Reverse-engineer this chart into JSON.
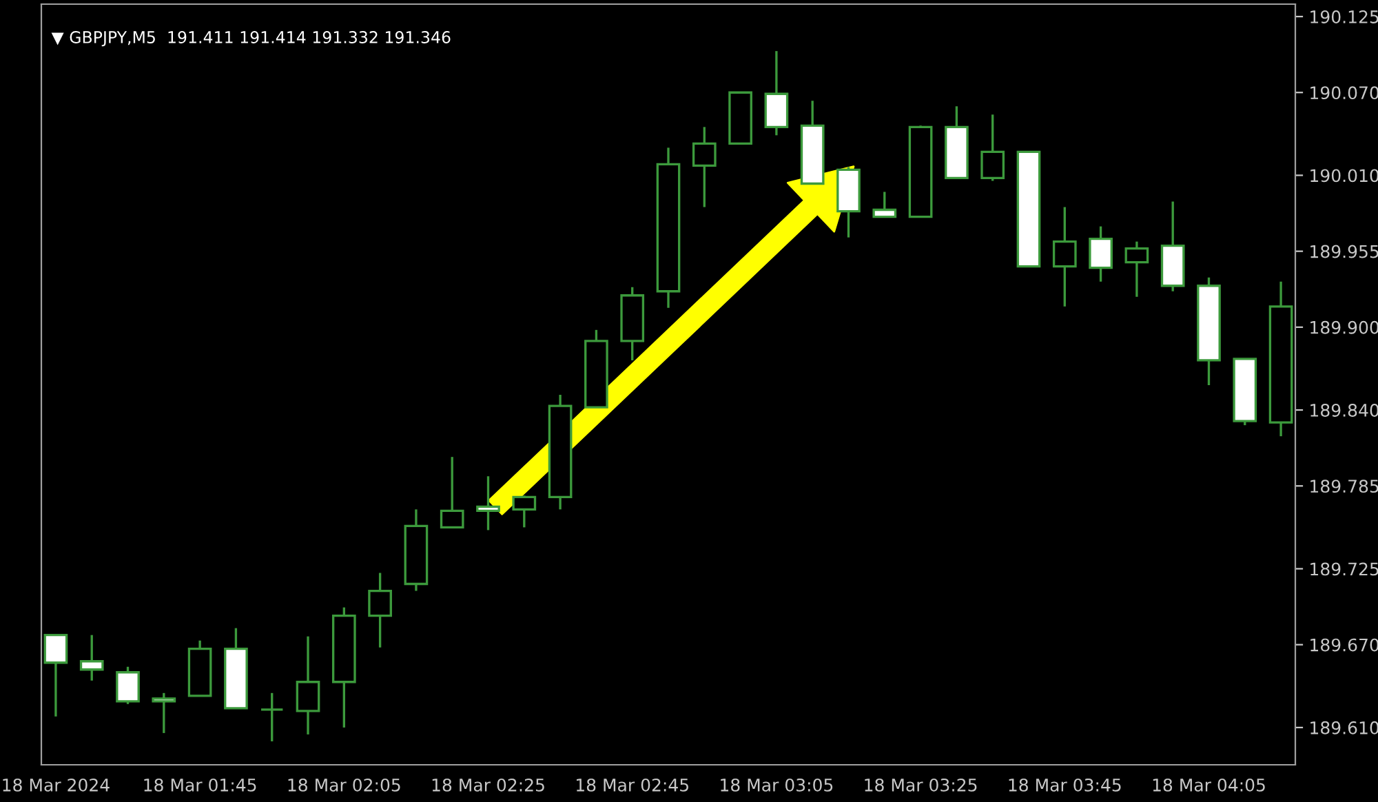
{
  "chart_data": {
    "type": "candlestick",
    "title": "▼ GBPJPY,M5  191.411 191.414 191.332 191.346",
    "categories": [
      "18 Mar 2024",
      null,
      null,
      null,
      "18 Mar 01:45",
      null,
      null,
      null,
      "18 Mar 02:05",
      null,
      null,
      null,
      "18 Mar 02:25",
      null,
      null,
      null,
      "18 Mar 02:45",
      null,
      null,
      null,
      "18 Mar 03:05",
      null,
      null,
      null,
      "18 Mar 03:25",
      null,
      null,
      null,
      "18 Mar 03:45",
      null,
      null,
      null,
      "18 Mar 04:05",
      null,
      null
    ],
    "color": "#3c9a3c",
    "colors": [
      "#ffffff",
      "#ffffff",
      "#ffffff",
      "#ffffff",
      "#000000",
      "#ffffff",
      "#3c9a3c",
      "#000000",
      "#000000",
      "#000000",
      "#000000",
      "#000000",
      "#ffffff",
      "#000000",
      "#000000",
      "#000000",
      "#000000",
      "#000000",
      "#000000",
      "#000000",
      "#ffffff",
      "#ffffff",
      "#ffffff",
      "#ffffff",
      "#000000",
      "#ffffff",
      "#000000",
      "#ffffff",
      "#000000",
      "#ffffff",
      "#000000",
      "#ffffff",
      "#ffffff",
      "#ffffff",
      "#000000"
    ],
    "ohlc": [
      [
        189.677,
        189.677,
        189.618,
        189.657
      ],
      [
        189.658,
        189.677,
        189.644,
        189.652
      ],
      [
        189.65,
        189.654,
        189.627,
        189.629
      ],
      [
        189.631,
        189.635,
        189.606,
        189.629
      ],
      [
        189.633,
        189.673,
        189.633,
        189.667
      ],
      [
        189.667,
        189.682,
        189.624,
        189.624
      ],
      [
        189.623,
        189.635,
        189.6,
        189.623
      ],
      [
        189.622,
        189.676,
        189.605,
        189.643
      ],
      [
        189.643,
        189.697,
        189.61,
        189.691
      ],
      [
        189.691,
        189.722,
        189.668,
        189.709
      ],
      [
        189.714,
        189.768,
        189.709,
        189.756
      ],
      [
        189.755,
        189.806,
        189.755,
        189.767
      ],
      [
        189.77,
        189.792,
        189.753,
        189.767
      ],
      [
        189.768,
        189.778,
        189.755,
        189.777
      ],
      [
        189.777,
        189.851,
        189.768,
        189.843
      ],
      [
        189.842,
        189.898,
        189.842,
        189.89
      ],
      [
        189.89,
        189.929,
        189.876,
        189.923
      ],
      [
        189.926,
        190.03,
        189.914,
        190.018
      ],
      [
        190.017,
        190.045,
        189.987,
        190.033
      ],
      [
        190.033,
        190.07,
        190.033,
        190.07
      ],
      [
        190.069,
        190.1,
        190.039,
        190.045
      ],
      [
        190.046,
        190.064,
        190.004,
        190.004
      ],
      [
        190.014,
        190.016,
        189.965,
        189.984
      ],
      [
        189.985,
        189.998,
        189.98,
        189.98
      ],
      [
        189.98,
        190.046,
        189.98,
        190.045
      ],
      [
        190.045,
        190.06,
        190.008,
        190.008
      ],
      [
        190.008,
        190.054,
        190.006,
        190.027
      ],
      [
        190.027,
        190.027,
        189.944,
        189.944
      ],
      [
        189.944,
        189.987,
        189.915,
        189.962
      ],
      [
        189.964,
        189.973,
        189.933,
        189.943
      ],
      [
        189.947,
        189.962,
        189.922,
        189.957
      ],
      [
        189.959,
        189.991,
        189.926,
        189.93
      ],
      [
        189.93,
        189.936,
        189.858,
        189.876
      ],
      [
        189.877,
        189.877,
        189.829,
        189.832
      ],
      [
        189.831,
        189.933,
        189.821,
        189.915
      ]
    ],
    "ylim": [
      189.583,
      190.134
    ],
    "yticks": [
      {
        "value": 190.125,
        "label": "190.125"
      },
      {
        "value": 190.07,
        "label": "190.070"
      },
      {
        "value": 190.01,
        "label": "190.010"
      },
      {
        "value": 189.955,
        "label": "189.955"
      },
      {
        "value": 189.9,
        "label": "189.900"
      },
      {
        "value": 189.84,
        "label": "189.840"
      },
      {
        "value": 189.785,
        "label": "189.785"
      },
      {
        "value": 189.725,
        "label": "189.725"
      },
      {
        "value": 189.67,
        "label": "189.670"
      },
      {
        "value": 189.61,
        "label": "189.610"
      }
    ]
  }
}
